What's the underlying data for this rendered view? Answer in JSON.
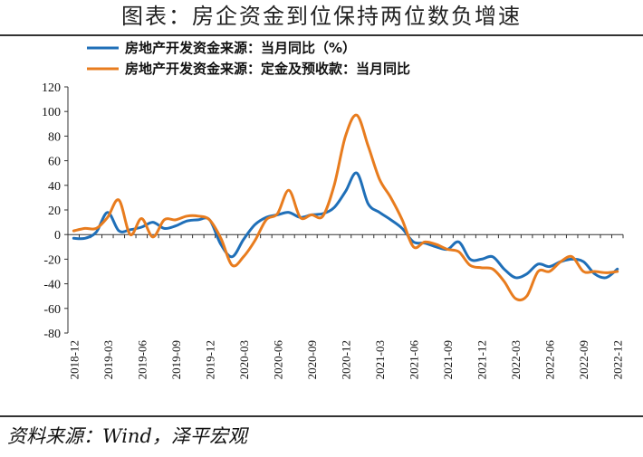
{
  "title": "图表：房企资金到位保持两位数负增速",
  "source": "资料来源：Wind，泽平宏观",
  "chart_data": {
    "type": "line",
    "x": [
      "2018-12",
      "2019-01",
      "2019-02",
      "2019-03",
      "2019-04",
      "2019-05",
      "2019-06",
      "2019-07",
      "2019-08",
      "2019-09",
      "2019-10",
      "2019-11",
      "2019-12",
      "2020-01",
      "2020-02",
      "2020-03",
      "2020-04",
      "2020-05",
      "2020-06",
      "2020-07",
      "2020-08",
      "2020-09",
      "2020-10",
      "2020-11",
      "2020-12",
      "2021-01",
      "2021-02",
      "2021-03",
      "2021-04",
      "2021-05",
      "2021-06",
      "2021-07",
      "2021-08",
      "2021-09",
      "2021-10",
      "2021-11",
      "2021-12",
      "2022-01",
      "2022-02",
      "2022-03",
      "2022-04",
      "2022-05",
      "2022-06",
      "2022-07",
      "2022-08",
      "2022-09",
      "2022-10",
      "2022-11",
      "2022-12"
    ],
    "tick_labels": [
      "2018-12",
      "2019-03",
      "2019-06",
      "2019-09",
      "2019-12",
      "2020-03",
      "2020-06",
      "2020-09",
      "2020-12",
      "2021-03",
      "2021-06",
      "2021-09",
      "2021-12",
      "2022-03",
      "2022-06",
      "2022-09",
      "2022-12"
    ],
    "series": [
      {
        "name": "房地产开发资金来源：当月同比（%）",
        "color": "#1f6fb8",
        "values": [
          -3,
          -3,
          2,
          18,
          3,
          4,
          6,
          10,
          5,
          7,
          11,
          12,
          12,
          -8,
          -18,
          -4,
          8,
          14,
          16,
          18,
          14,
          16,
          17,
          22,
          35,
          50,
          25,
          18,
          12,
          5,
          -6,
          -7,
          -10,
          -12,
          -6,
          -20,
          -20,
          -18,
          -28,
          -35,
          -32,
          -24,
          -26,
          -22,
          -20,
          -22,
          -32,
          -35,
          -28
        ]
      },
      {
        "name": "房地产开发资金来源：定金及预收款：当月同比",
        "color": "#e87c1e",
        "values": [
          3,
          5,
          5,
          14,
          28,
          0,
          13,
          -2,
          12,
          12,
          15,
          15,
          12,
          -3,
          -25,
          -18,
          -5,
          12,
          17,
          36,
          14,
          16,
          15,
          40,
          80,
          97,
          72,
          45,
          30,
          12,
          -10,
          -6,
          -8,
          -12,
          -14,
          -25,
          -27,
          -28,
          -38,
          -52,
          -50,
          -30,
          -30,
          -22,
          -18,
          -30,
          -30,
          -31,
          -30
        ]
      }
    ],
    "ylim": [
      -80,
      120
    ],
    "yticks": [
      -80,
      -60,
      -40,
      -20,
      0,
      20,
      40,
      60,
      80,
      100,
      120
    ],
    "xlabel": "",
    "ylabel": "",
    "legend_position": "top-left"
  }
}
